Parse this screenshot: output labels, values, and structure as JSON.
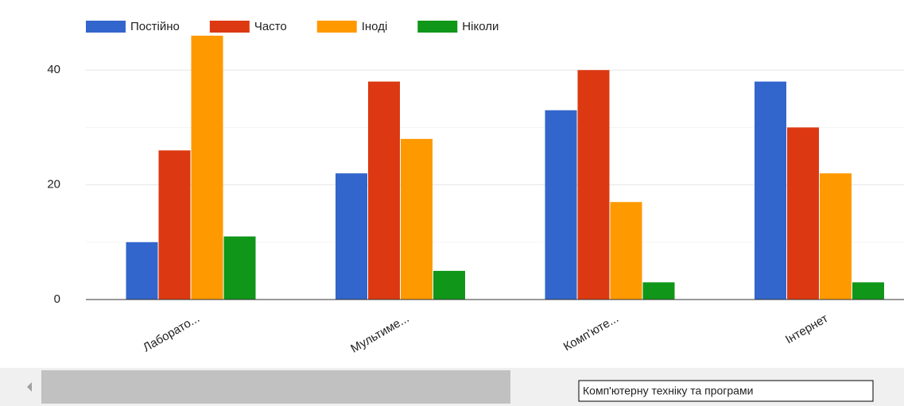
{
  "chart_data": {
    "type": "bar",
    "categories": [
      "Лаборато...",
      "Мультиме...",
      "Комп'юте...",
      "Інтернет"
    ],
    "series": [
      {
        "name": "Постійно",
        "color": "#3366cc",
        "values": [
          10,
          22,
          33,
          38
        ]
      },
      {
        "name": "Часто",
        "color": "#dc3912",
        "values": [
          26,
          38,
          40,
          30
        ]
      },
      {
        "name": "Іноді",
        "color": "#ff9900",
        "values": [
          46,
          28,
          17,
          22
        ]
      },
      {
        "name": "Ніколи",
        "color": "#109618",
        "values": [
          11,
          5,
          3,
          3
        ]
      }
    ],
    "ylim": [
      0,
      50
    ],
    "yticks": [
      0,
      20,
      40
    ],
    "minor_yticks": [
      10,
      30
    ],
    "grid": true,
    "legend": "top",
    "tooltip": "Комп'ютерну техніку та програми"
  }
}
